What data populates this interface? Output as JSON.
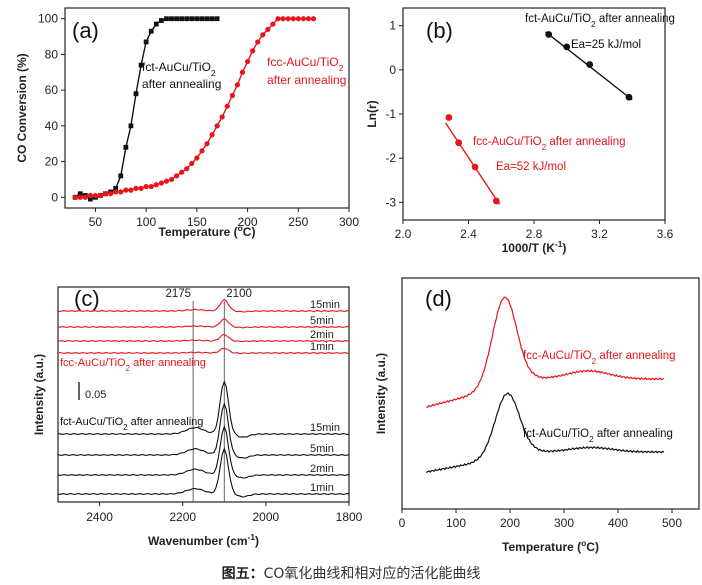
{
  "caption": {
    "label": "图五：",
    "text": "CO氧化曲线和相对应的活化能曲线"
  },
  "colors": {
    "black_series": "#111111",
    "red_series": "#e8151b",
    "axis": "#222222",
    "panel_label": "#111111"
  },
  "chart_data": [
    {
      "panel": "(a)",
      "type": "line",
      "xlabel": "Temperature (°C)",
      "ylabel": "CO Conversion (%)",
      "xlim": [
        20,
        300
      ],
      "ylim": [
        -6,
        106
      ],
      "xticks": [
        50,
        100,
        150,
        200,
        250,
        300
      ],
      "yticks": [
        0,
        20,
        40,
        60,
        80,
        100
      ],
      "series": [
        {
          "name": "fct-AuCu/TiO2 after annealing",
          "color": "#111111",
          "marker": "square",
          "x": [
            30,
            35,
            40,
            45,
            50,
            55,
            60,
            65,
            70,
            75,
            80,
            85,
            90,
            95,
            100,
            105,
            110,
            115,
            120,
            125,
            130,
            135,
            140,
            145,
            150,
            155,
            160,
            165,
            170
          ],
          "y": [
            0,
            2,
            1,
            -1,
            0,
            1,
            2,
            3,
            5,
            12,
            28,
            40,
            58,
            74,
            87,
            93,
            97,
            99,
            100,
            100,
            100,
            100,
            100,
            100,
            100,
            100,
            100,
            100,
            100
          ]
        },
        {
          "name": "fcc-AuCu/TiO2 after annealing",
          "color": "#e8151b",
          "marker": "circle",
          "x": [
            30,
            35,
            40,
            45,
            50,
            55,
            60,
            65,
            70,
            75,
            80,
            85,
            90,
            95,
            100,
            105,
            110,
            115,
            120,
            125,
            130,
            135,
            140,
            145,
            150,
            155,
            160,
            165,
            170,
            175,
            180,
            185,
            190,
            195,
            200,
            205,
            210,
            215,
            220,
            225,
            230,
            235,
            240,
            245,
            250,
            255,
            260,
            265
          ],
          "y": [
            0,
            0,
            0,
            1,
            1,
            1,
            2,
            2,
            3,
            3,
            4,
            4,
            5,
            5,
            6,
            6,
            7,
            8,
            9,
            10,
            12,
            14,
            16,
            19,
            22,
            26,
            30,
            35,
            40,
            45,
            51,
            57,
            63,
            70,
            76,
            82,
            87,
            91,
            94,
            97,
            100,
            100,
            100,
            100,
            100,
            100,
            100,
            100
          ]
        }
      ],
      "annotations": [
        {
          "lines": [
            "fct-AuCu/TiO2",
            "after annealing"
          ],
          "color": "#111111"
        },
        {
          "lines": [
            "fcc-AuCu/TiO2",
            "after annealing"
          ],
          "color": "#e8151b"
        }
      ]
    },
    {
      "panel": "(b)",
      "type": "scatter",
      "xlabel": "1000/T (K-1)",
      "ylabel": "Ln(r)",
      "xlim": [
        2.0,
        3.6
      ],
      "ylim": [
        -3.4,
        1.4
      ],
      "xticks": [
        2.0,
        2.4,
        2.8,
        3.2,
        3.6
      ],
      "yticks": [
        1,
        0,
        -1,
        -2,
        -3
      ],
      "series": [
        {
          "name": "fct-AuCu/TiO2 after annealing",
          "color": "#111111",
          "x": [
            2.89,
            3.0,
            3.14,
            3.38
          ],
          "y": [
            0.8,
            0.52,
            0.12,
            -0.62
          ],
          "fit": [
            [
              2.87,
              0.86
            ],
            [
              3.4,
              -0.68
            ]
          ],
          "ea": "Ea=25 kJ/mol"
        },
        {
          "name": "fcc-AuCu/TiO2 after annealing",
          "color": "#e8151b",
          "x": [
            2.28,
            2.34,
            2.44,
            2.57
          ],
          "y": [
            -1.08,
            -1.65,
            -2.2,
            -2.97
          ],
          "fit": [
            [
              2.26,
              -1.2
            ],
            [
              2.59,
              -3.05
            ]
          ],
          "ea": "Ea=52 kJ/mol"
        }
      ]
    },
    {
      "panel": "(c)",
      "type": "line",
      "xlabel": "Wavenumber (cm-1)",
      "ylabel": "Intensity (a.u.)",
      "xlim": [
        2500,
        1800
      ],
      "xticks": [
        2400,
        2200,
        2000,
        1800
      ],
      "reference_lines": [
        2175,
        2100
      ],
      "scale_bar": "0.05",
      "red_label": "fcc-AuCu/TiO2 after annealing",
      "black_label": "fct-AuCu/TiO2 after annealing",
      "series": [
        {
          "name": "15min",
          "group": "fcc",
          "color": "#e8151b",
          "peak": 0.07
        },
        {
          "name": "5min",
          "group": "fcc",
          "color": "#e8151b",
          "peak": 0.05
        },
        {
          "name": "2min",
          "group": "fcc",
          "color": "#e8151b",
          "peak": 0.04
        },
        {
          "name": "1min",
          "group": "fcc",
          "color": "#e8151b",
          "peak": 0.03
        },
        {
          "name": "15min",
          "group": "fct",
          "color": "#111111",
          "peak": 0.33
        },
        {
          "name": "5min",
          "group": "fct",
          "color": "#111111",
          "peak": 0.32
        },
        {
          "name": "2min",
          "group": "fct",
          "color": "#111111",
          "peak": 0.3
        },
        {
          "name": "1min",
          "group": "fct",
          "color": "#111111",
          "peak": 0.28
        }
      ]
    },
    {
      "panel": "(d)",
      "type": "line",
      "xlabel": "Temperature (°C)",
      "ylabel": "Intensity (a.u.)",
      "xlim": [
        0,
        550
      ],
      "xticks": [
        0,
        100,
        200,
        300,
        400,
        500
      ],
      "series": [
        {
          "name": "fcc-AuCu/TiO2 after annealing",
          "color": "#e8151b",
          "peak_x": 190,
          "peak2_x": 345
        },
        {
          "name": "fct-AuCu/TiO2 after annealing",
          "color": "#111111",
          "peak_x": 195,
          "peak2_x": 350
        }
      ]
    }
  ]
}
